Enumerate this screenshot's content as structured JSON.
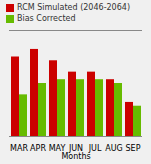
{
  "chart_data": {
    "type": "bar",
    "xlabel": "Months",
    "categories": [
      "MAR",
      "APR",
      "MAY",
      "JUN",
      "JUL",
      "AUG",
      "SEP"
    ],
    "series": [
      {
        "name": "RCM Simulated (2046-2064)",
        "color": "#cc0000",
        "values": [
          28.5,
          29.5,
          28.0,
          26.5,
          26.5,
          25.5,
          22.5
        ]
      },
      {
        "name": "Bias Corrected",
        "color": "#66bb00",
        "values": [
          23.5,
          25.0,
          25.5,
          25.5,
          25.5,
          25.0,
          22.0
        ]
      }
    ],
    "ylim": [
      18,
      32
    ],
    "tick_labels": "x",
    "legend": "upper left"
  }
}
